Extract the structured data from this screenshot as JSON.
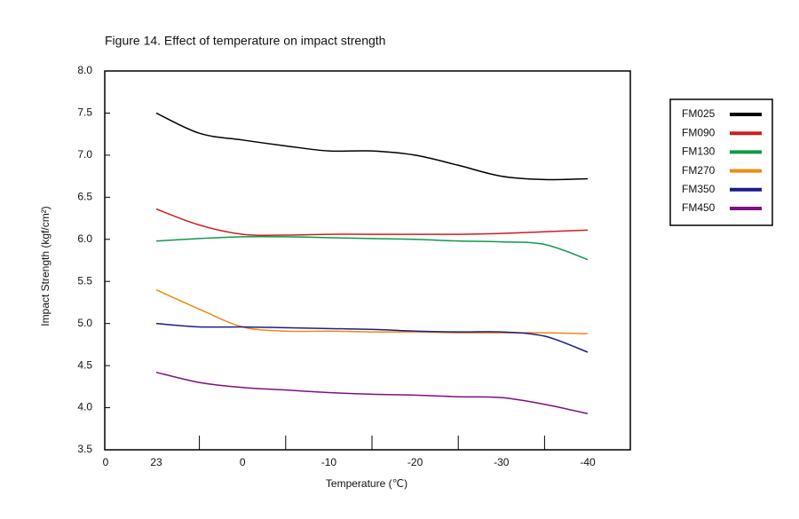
{
  "chart_data": {
    "type": "line",
    "title": "Figure 14. Effect of temperature on impact strength",
    "x_label": "Temperature (℃)",
    "y_label": "Impact Strength (kgf/cm²)",
    "x_origin_label": "0",
    "categories": [
      "23",
      null,
      "0",
      null,
      "-10",
      null,
      "-20",
      null,
      "-30",
      null,
      "-40"
    ],
    "ylim": [
      3.5,
      8.0
    ],
    "yticks": [
      3.5,
      {
        "value": 4,
        "label": "4.0"
      },
      4.5,
      {
        "value": 5,
        "label": "5.0"
      },
      5.5,
      {
        "value": 6,
        "label": "6.0"
      },
      6.5,
      {
        "value": 7,
        "label": "7.0"
      },
      7.5,
      {
        "value": 8,
        "label": "8.0"
      }
    ],
    "legend": "right",
    "series": [
      {
        "name": "FM025",
        "color": "#000000",
        "values": [
          7.5,
          7.26,
          7.18,
          7.11,
          7.05,
          7.05,
          7.0,
          6.88,
          6.75,
          6.71,
          6.72
        ]
      },
      {
        "name": "FM090",
        "color": "#d01c1c",
        "values": [
          6.36,
          6.17,
          6.06,
          6.05,
          6.06,
          6.06,
          6.06,
          6.06,
          6.07,
          6.09,
          6.11
        ]
      },
      {
        "name": "FM130",
        "color": "#0e9a48",
        "values": [
          5.98,
          6.01,
          6.03,
          6.03,
          6.02,
          6.01,
          6.0,
          5.98,
          5.97,
          5.94,
          5.76
        ]
      },
      {
        "name": "FM270",
        "color": "#f08a10",
        "values": [
          5.4,
          5.17,
          4.96,
          4.91,
          4.91,
          4.9,
          4.9,
          4.89,
          4.89,
          4.89,
          4.88
        ]
      },
      {
        "name": "FM350",
        "color": "#1c1c8c",
        "values": [
          5.0,
          4.96,
          4.96,
          4.95,
          4.94,
          4.93,
          4.91,
          4.9,
          4.9,
          4.85,
          4.66
        ]
      },
      {
        "name": "FM450",
        "color": "#7e1080",
        "values": [
          4.42,
          4.3,
          4.24,
          4.21,
          4.18,
          4.16,
          4.15,
          4.13,
          4.12,
          4.04,
          3.93
        ]
      }
    ]
  }
}
